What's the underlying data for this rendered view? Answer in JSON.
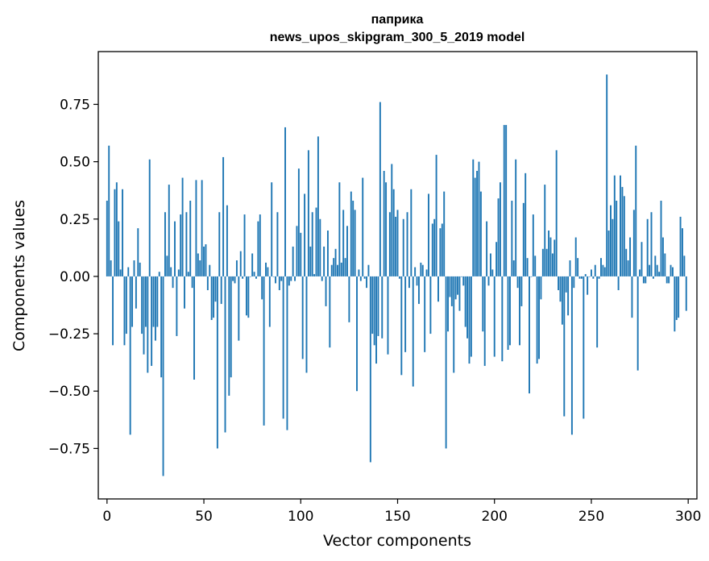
{
  "chart_data": {
    "type": "bar",
    "title": "паприка",
    "subtitle": "news_upos_skipgram_300_5_2019 model",
    "xlabel": "Vector components",
    "ylabel": "Components values",
    "xlim": [
      -4.5,
      304.5
    ],
    "ylim": [
      -0.97,
      0.98
    ],
    "xticks": [
      0,
      50,
      100,
      150,
      200,
      250,
      300
    ],
    "xtick_labels": [
      "0",
      "50",
      "100",
      "150",
      "200",
      "250",
      "300"
    ],
    "yticks": [
      -0.75,
      -0.5,
      -0.25,
      0.0,
      0.25,
      0.5,
      0.75
    ],
    "ytick_labels": [
      "−0.75",
      "−0.50",
      "−0.25",
      "0.00",
      "0.25",
      "0.50",
      "0.75"
    ],
    "grid": false,
    "bar_color": "#1f77b4",
    "values": [
      0.33,
      0.57,
      0.07,
      -0.3,
      0.38,
      0.41,
      0.24,
      0.03,
      0.38,
      -0.3,
      -0.25,
      0.04,
      -0.69,
      -0.22,
      0.07,
      -0.14,
      0.21,
      0.06,
      -0.25,
      -0.34,
      -0.22,
      -0.42,
      0.51,
      -0.39,
      -0.22,
      -0.28,
      -0.22,
      0.02,
      -0.44,
      -0.87,
      0.28,
      0.09,
      0.4,
      0.04,
      -0.05,
      0.24,
      -0.26,
      0.03,
      0.27,
      0.43,
      -0.14,
      0.28,
      0.02,
      0.33,
      -0.05,
      -0.45,
      0.42,
      0.1,
      0.07,
      0.42,
      0.13,
      0.14,
      -0.06,
      0.05,
      -0.19,
      -0.18,
      -0.11,
      -0.75,
      0.28,
      -0.12,
      0.52,
      -0.68,
      0.31,
      -0.52,
      -0.44,
      -0.02,
      -0.03,
      0.07,
      -0.28,
      0.11,
      -0.01,
      0.27,
      -0.17,
      -0.18,
      0.0,
      0.1,
      0.02,
      -0.01,
      0.24,
      0.27,
      -0.1,
      -0.65,
      0.06,
      0.04,
      -0.22,
      0.41,
      0.0,
      -0.03,
      0.28,
      -0.06,
      -0.02,
      -0.62,
      0.65,
      -0.67,
      -0.04,
      -0.02,
      0.13,
      -0.02,
      0.22,
      0.47,
      0.19,
      -0.36,
      0.36,
      -0.42,
      0.55,
      0.13,
      0.28,
      0.01,
      0.3,
      0.61,
      0.25,
      -0.02,
      0.13,
      -0.13,
      0.2,
      -0.31,
      0.05,
      0.08,
      0.12,
      0.05,
      0.41,
      0.06,
      0.29,
      0.08,
      0.22,
      -0.2,
      0.37,
      0.33,
      0.29,
      -0.5,
      0.03,
      -0.02,
      0.43,
      -0.01,
      -0.05,
      0.05,
      -0.81,
      -0.25,
      -0.3,
      -0.38,
      -0.26,
      0.76,
      -0.27,
      0.46,
      0.41,
      -0.34,
      0.28,
      0.49,
      0.38,
      0.26,
      0.29,
      -0.01,
      -0.43,
      0.25,
      -0.33,
      0.28,
      -0.05,
      0.38,
      -0.48,
      0.04,
      -0.04,
      -0.12,
      0.06,
      0.05,
      -0.33,
      0.03,
      0.36,
      -0.25,
      0.23,
      0.25,
      0.53,
      -0.11,
      0.21,
      0.23,
      0.37,
      -0.75,
      -0.24,
      -0.09,
      -0.13,
      -0.42,
      -0.1,
      -0.08,
      -0.15,
      0.0,
      -0.04,
      -0.22,
      -0.27,
      -0.38,
      -0.35,
      0.51,
      0.43,
      0.46,
      0.5,
      0.37,
      -0.24,
      -0.39,
      0.24,
      -0.04,
      0.1,
      0.03,
      -0.35,
      0.15,
      0.34,
      0.41,
      -0.37,
      0.66,
      0.66,
      -0.32,
      -0.3,
      0.33,
      0.07,
      0.51,
      -0.05,
      -0.3,
      -0.13,
      0.32,
      0.45,
      0.08,
      -0.51,
      0.0,
      0.27,
      0.09,
      -0.38,
      -0.36,
      -0.1,
      0.12,
      0.4,
      0.12,
      0.2,
      0.17,
      0.1,
      0.16,
      0.55,
      -0.06,
      -0.11,
      -0.21,
      -0.61,
      -0.07,
      -0.17,
      0.07,
      -0.69,
      -0.05,
      0.17,
      0.08,
      -0.01,
      -0.01,
      -0.62,
      0.01,
      -0.08,
      0.0,
      0.03,
      -0.01,
      0.05,
      -0.31,
      -0.01,
      0.08,
      0.05,
      0.04,
      0.88,
      0.2,
      0.31,
      0.25,
      0.44,
      0.33,
      -0.06,
      0.44,
      0.39,
      0.35,
      0.12,
      0.07,
      0.17,
      -0.18,
      0.29,
      0.57,
      -0.41,
      0.03,
      0.15,
      -0.03,
      -0.03,
      0.25,
      0.05,
      0.28,
      -0.01,
      0.09,
      0.05,
      0.02,
      0.33,
      0.17,
      0.1,
      -0.03,
      -0.03,
      0.05,
      0.04,
      -0.24,
      -0.19,
      -0.18,
      0.26,
      0.21,
      0.09,
      -0.15
    ]
  }
}
